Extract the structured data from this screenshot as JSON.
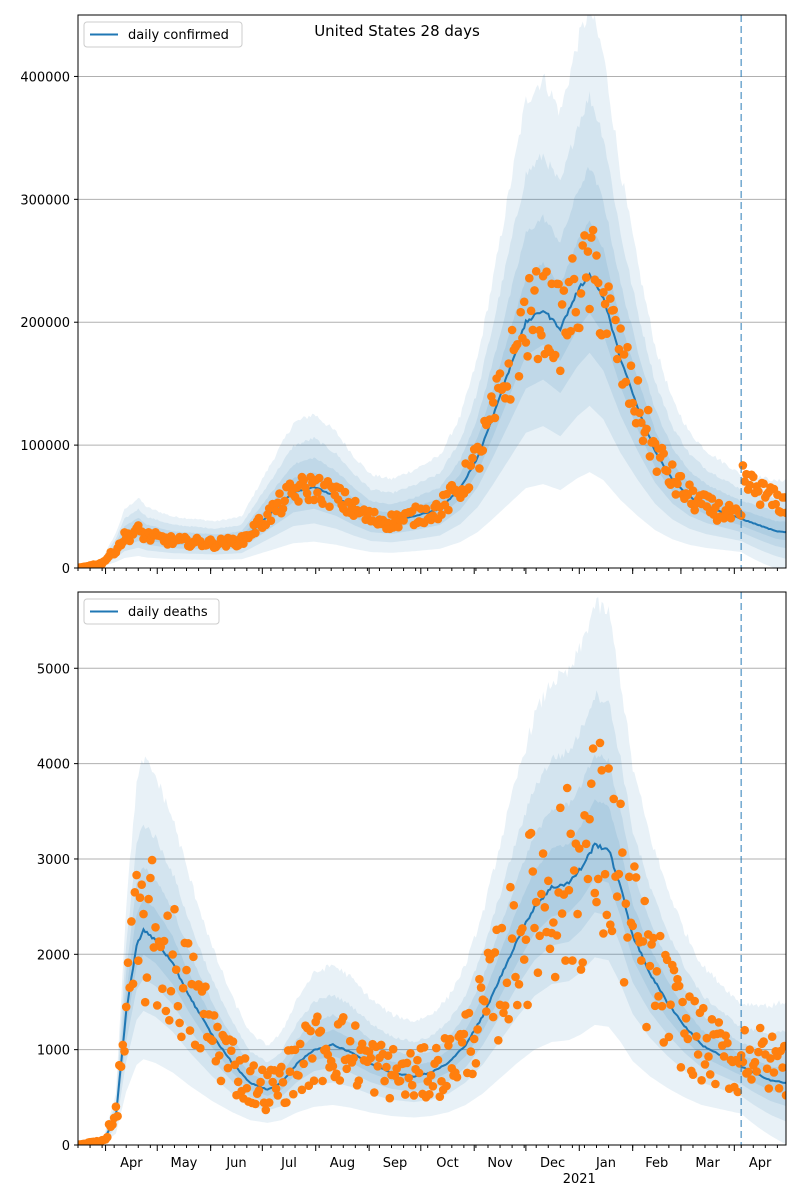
{
  "figure_title": "United States 28 days",
  "colors": {
    "line": "#1f77b4",
    "points": "#ff7f0e",
    "band": "#1f77b4",
    "grid": "#b0b0b0",
    "forecast_line": "#1f77b4"
  },
  "x_axis": {
    "month_labels": [
      "Apr",
      "May",
      "Jun",
      "Jul",
      "Aug",
      "Sep",
      "Oct",
      "Nov",
      "Dec",
      "Jan",
      "Feb",
      "Mar",
      "Apr"
    ],
    "year_label": "2021",
    "range_days": [
      0,
      411
    ],
    "forecast_start_day": 385
  },
  "chart_data": [
    {
      "type": "line",
      "legend": "daily confirmed",
      "legend_position": "top-left",
      "grid": "y",
      "ylim": [
        0,
        450000
      ],
      "yticks": [
        0,
        100000,
        200000,
        300000,
        400000
      ],
      "ytick_labels": [
        "0",
        "100000",
        "200000",
        "300000",
        "400000"
      ],
      "line_knots": [
        [
          0,
          0
        ],
        [
          14,
          4000
        ],
        [
          22,
          15000
        ],
        [
          27,
          25000
        ],
        [
          35,
          30000
        ],
        [
          40,
          26000
        ],
        [
          55,
          22000
        ],
        [
          80,
          20000
        ],
        [
          95,
          22000
        ],
        [
          110,
          42000
        ],
        [
          125,
          62000
        ],
        [
          137,
          66000
        ],
        [
          150,
          58000
        ],
        [
          160,
          48000
        ],
        [
          170,
          40000
        ],
        [
          182,
          38000
        ],
        [
          195,
          42000
        ],
        [
          210,
          48000
        ],
        [
          222,
          65000
        ],
        [
          232,
          90000
        ],
        [
          240,
          120000
        ],
        [
          250,
          160000
        ],
        [
          260,
          200000
        ],
        [
          270,
          210000
        ],
        [
          280,
          195000
        ],
        [
          290,
          225000
        ],
        [
          297,
          240000
        ],
        [
          305,
          220000
        ],
        [
          315,
          170000
        ],
        [
          325,
          130000
        ],
        [
          335,
          95000
        ],
        [
          345,
          72000
        ],
        [
          355,
          58000
        ],
        [
          365,
          50000
        ],
        [
          375,
          45000
        ],
        [
          385,
          40000
        ],
        [
          395,
          35000
        ],
        [
          405,
          30000
        ],
        [
          411,
          29000
        ]
      ],
      "band_half_widths": [
        0.18,
        0.36,
        0.6,
        0.9
      ],
      "observed_points_note": "daily observed values scattered around the fitted line"
    },
    {
      "type": "line",
      "legend": "daily deaths",
      "legend_position": "top-left",
      "grid": "y",
      "ylim": [
        0,
        5800
      ],
      "yticks": [
        0,
        1000,
        2000,
        3000,
        4000,
        5000
      ],
      "ytick_labels": [
        "0",
        "1000",
        "2000",
        "3000",
        "4000",
        "5000"
      ],
      "line_knots": [
        [
          0,
          0
        ],
        [
          15,
          50
        ],
        [
          22,
          300
        ],
        [
          28,
          1400
        ],
        [
          34,
          2100
        ],
        [
          38,
          2250
        ],
        [
          45,
          2150
        ],
        [
          55,
          1900
        ],
        [
          65,
          1550
        ],
        [
          78,
          1150
        ],
        [
          90,
          850
        ],
        [
          100,
          650
        ],
        [
          110,
          580
        ],
        [
          118,
          650
        ],
        [
          127,
          850
        ],
        [
          137,
          1000
        ],
        [
          148,
          1050
        ],
        [
          158,
          980
        ],
        [
          170,
          850
        ],
        [
          182,
          760
        ],
        [
          195,
          720
        ],
        [
          205,
          760
        ],
        [
          215,
          860
        ],
        [
          225,
          1050
        ],
        [
          235,
          1350
        ],
        [
          245,
          1750
        ],
        [
          255,
          2150
        ],
        [
          265,
          2500
        ],
        [
          275,
          2700
        ],
        [
          285,
          2750
        ],
        [
          292,
          2900
        ],
        [
          300,
          3150
        ],
        [
          308,
          3100
        ],
        [
          315,
          2700
        ],
        [
          322,
          2200
        ],
        [
          332,
          1800
        ],
        [
          342,
          1500
        ],
        [
          352,
          1250
        ],
        [
          362,
          1050
        ],
        [
          372,
          950
        ],
        [
          382,
          850
        ],
        [
          392,
          760
        ],
        [
          402,
          680
        ],
        [
          411,
          650
        ]
      ],
      "band_half_widths": [
        0.15,
        0.3,
        0.5,
        0.8
      ],
      "observed_points_note": "daily observed values scattered around the fitted line"
    }
  ]
}
